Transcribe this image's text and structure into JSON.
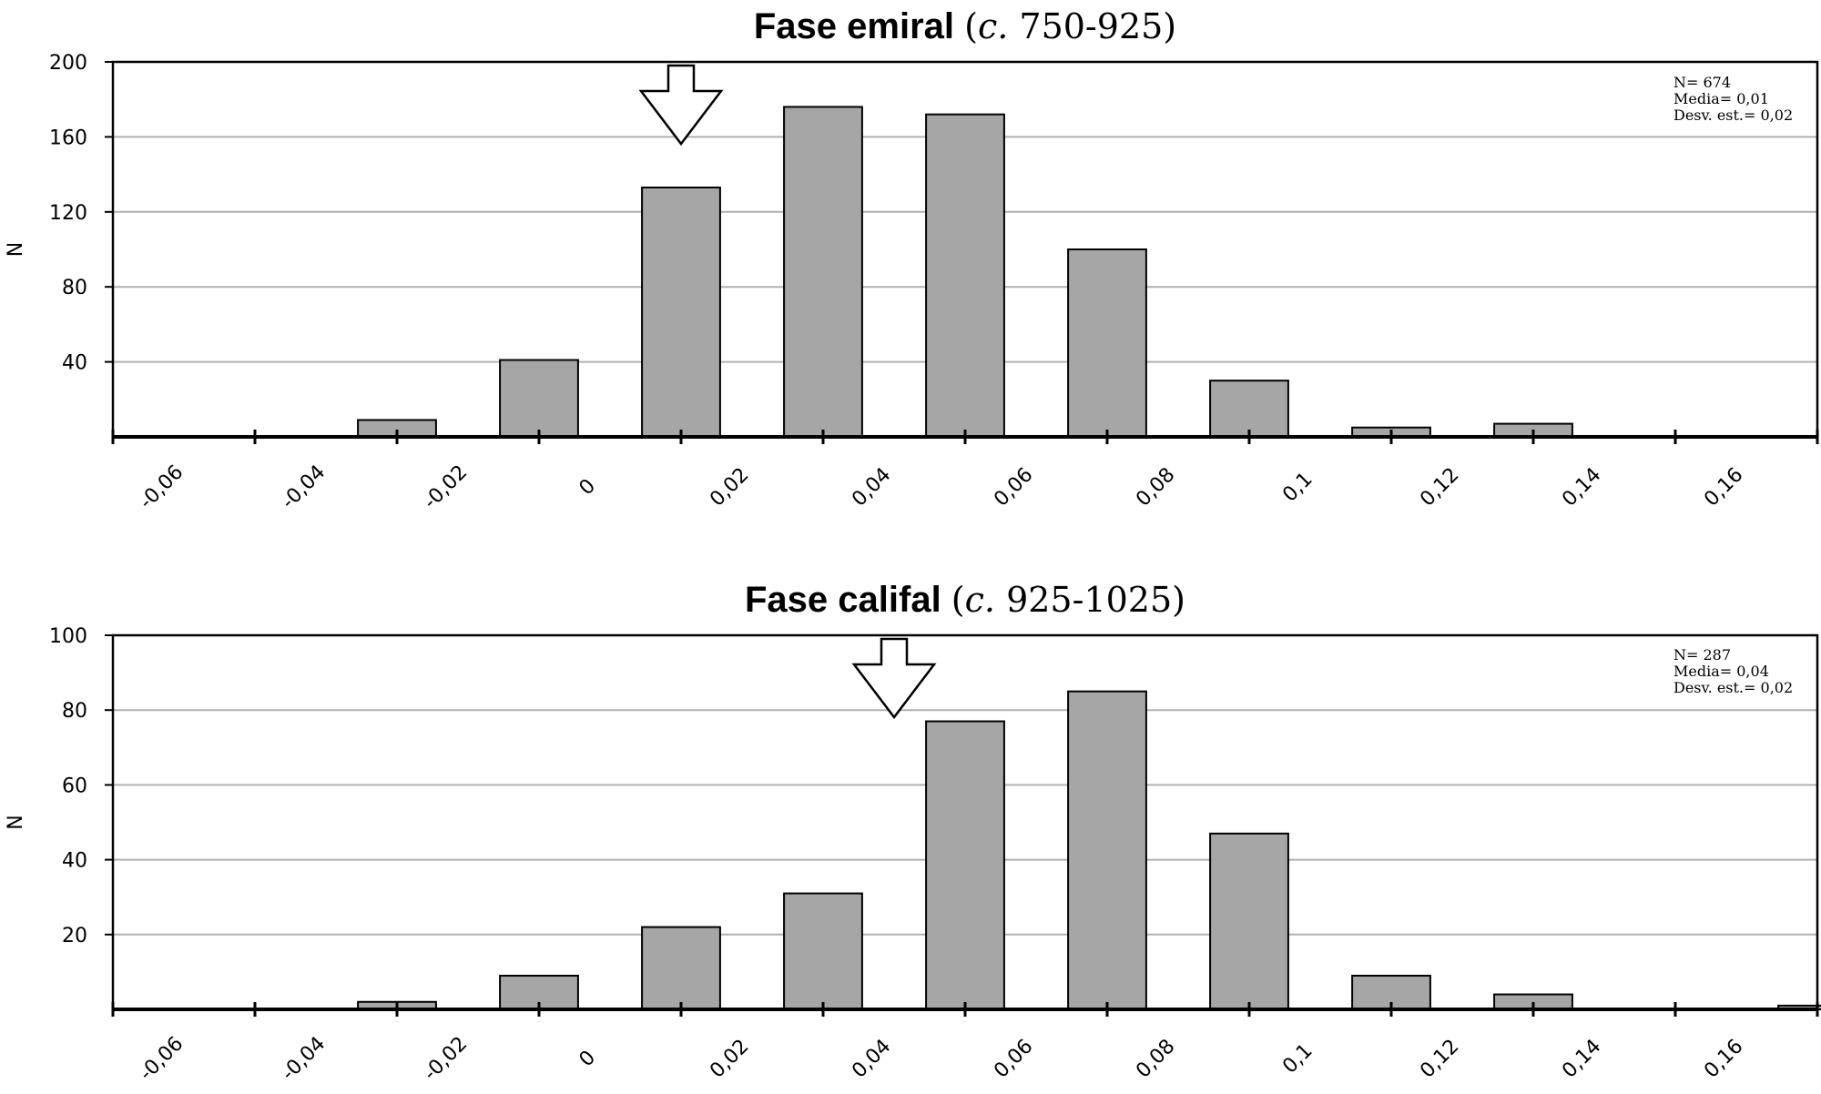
{
  "chart_data": [
    {
      "type": "bar",
      "title_bold": "Fase emiral",
      "title_open": "(",
      "title_italic": "c.",
      "title_rest": " 750-925)",
      "ylabel": "N",
      "ylim": [
        0,
        200
      ],
      "yticks": [
        "40",
        "80",
        "120",
        "160",
        "200"
      ],
      "ytick_values": [
        40,
        80,
        120,
        160,
        200
      ],
      "x_ticks": [
        "-0,06",
        "-0,04",
        "-0,02",
        "0",
        "0,02",
        "0,04",
        "0,06",
        "0,08",
        "0,1",
        "0,12",
        "0,14",
        "0,16"
      ],
      "values": [
        0,
        9,
        41,
        133,
        176,
        172,
        100,
        30,
        5,
        7,
        0
      ],
      "mean_arrow_x": 0.01,
      "stats": [
        "N= 674",
        "Media= 0,01",
        "Desv. est.= 0,02"
      ]
    },
    {
      "type": "bar",
      "title_bold": "Fase califal",
      "title_open": "(",
      "title_italic": "c.",
      "title_rest": " 925-1025)",
      "ylabel": "N",
      "ylim": [
        0,
        100
      ],
      "yticks": [
        "20",
        "40",
        "60",
        "80",
        "100"
      ],
      "ytick_values": [
        20,
        40,
        60,
        80,
        100
      ],
      "x_ticks": [
        "-0,06",
        "-0,04",
        "-0,02",
        "0",
        "0,02",
        "0,04",
        "0,06",
        "0,08",
        "0,1",
        "0,12",
        "0,14",
        "0,16"
      ],
      "values": [
        0,
        2,
        9,
        22,
        31,
        77,
        85,
        47,
        9,
        4,
        0,
        1
      ],
      "mean_arrow_x": 0.04,
      "stats": [
        "N= 287",
        "Media= 0,04",
        "Desv. est.= 0,02"
      ]
    }
  ],
  "colors": {
    "bar_fill": "#a6a6a6",
    "bar_stroke": "#000000",
    "grid": "#b0b0b0",
    "axis": "#000000"
  }
}
